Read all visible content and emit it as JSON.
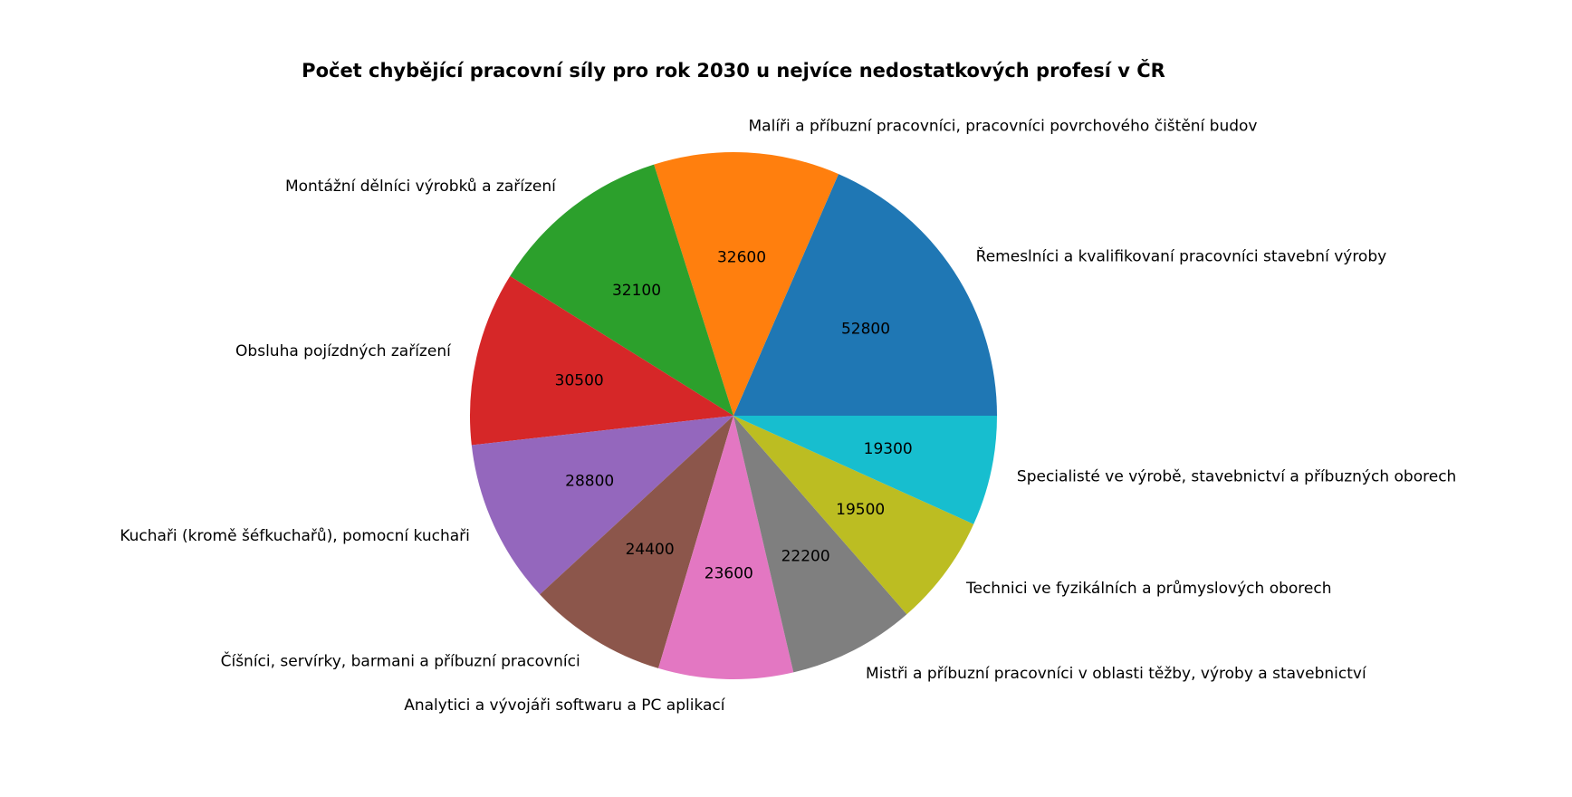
{
  "chart_data": {
    "type": "pie",
    "title": "Počet chybějící pracovní síly pro rok 2030 u nejvíce nedostatkových profesí v ČR",
    "start_angle": 0,
    "direction": "counterclockwise",
    "slices": [
      {
        "label": "Řemeslníci a kvalifikovaní pracovníci stavební výroby",
        "value": 52800,
        "value_label": "52800",
        "color": "#1f77b4"
      },
      {
        "label": "Malíři a příbuzní pracovníci, pracovníci povrchového čištění budov",
        "value": 32600,
        "value_label": "32600",
        "color": "#ff7f0e"
      },
      {
        "label": "Montážní dělníci výrobků a zařízení",
        "value": 32100,
        "value_label": "32100",
        "color": "#2ca02c"
      },
      {
        "label": "Obsluha pojízdných zařízení",
        "value": 30500,
        "value_label": "30500",
        "color": "#d62728"
      },
      {
        "label": "Kuchaři (kromě šéfkuchařů), pomocní kuchaři",
        "value": 28800,
        "value_label": "28800",
        "color": "#9467bd"
      },
      {
        "label": "Číšníci, servírky, barmani a příbuzní pracovníci",
        "value": 24400,
        "value_label": "24400",
        "color": "#8c564b"
      },
      {
        "label": "Analytici a vývojáři softwaru a PC aplikací",
        "value": 23600,
        "value_label": "23600",
        "color": "#e377c2"
      },
      {
        "label": "Mistři a příbuzní pracovníci v oblasti těžby, výroby a stavebnictví",
        "value": 22200,
        "value_label": "22200",
        "color": "#7f7f7f"
      },
      {
        "label": "Technici ve fyzikálních a průmyslových oborech",
        "value": 19500,
        "value_label": "19500",
        "color": "#bcbd22"
      },
      {
        "label": "Specialisté ve výrobě, stavebnictví a příbuzných oborech",
        "value": 19300,
        "value_label": "19300",
        "color": "#17becf"
      }
    ]
  }
}
